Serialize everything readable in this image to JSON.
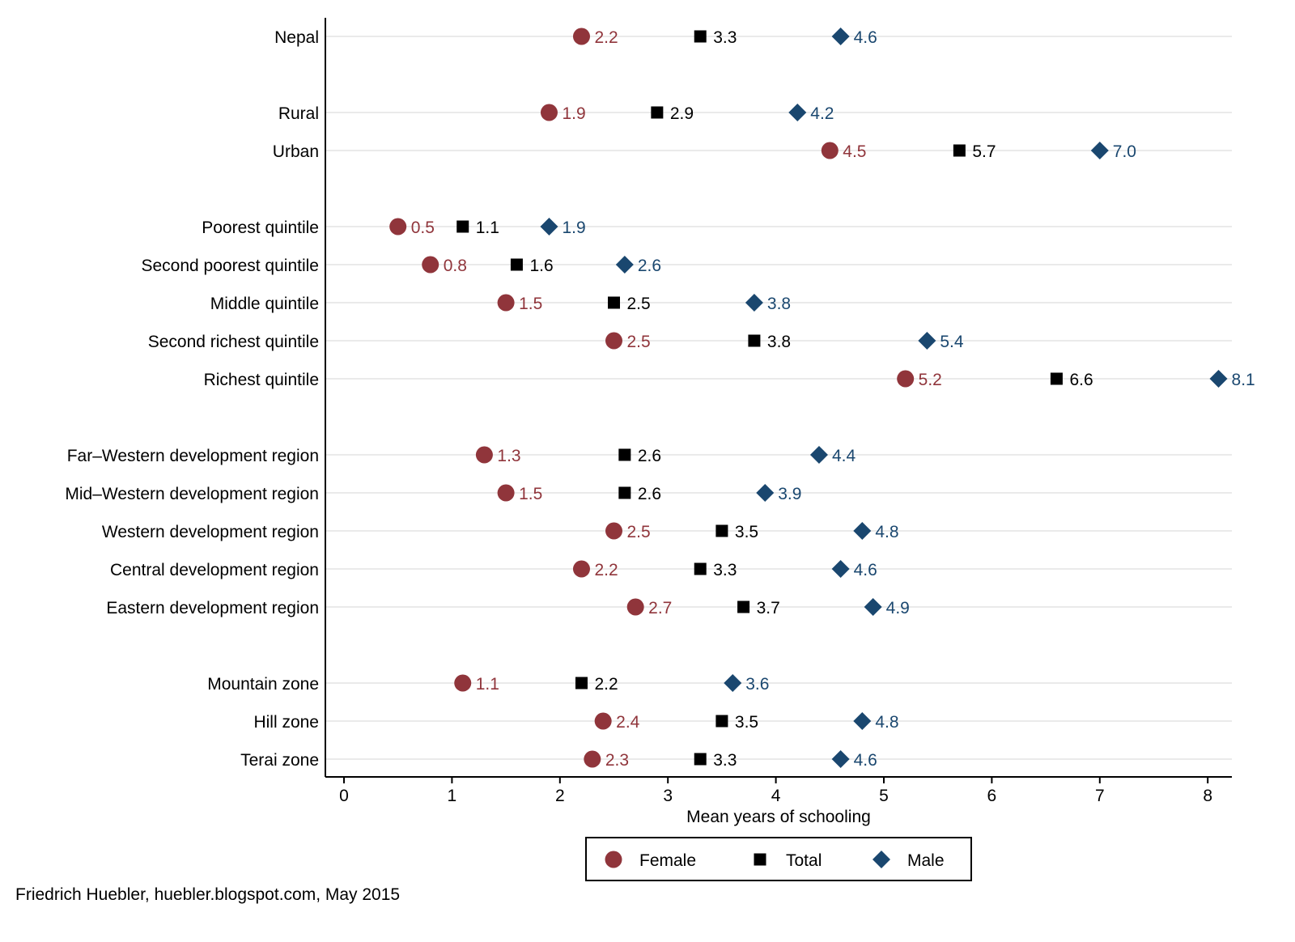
{
  "chart_data": {
    "type": "scatter",
    "orientation": "horizontal dot plot",
    "title": "",
    "xlabel": "Mean years of schooling",
    "ylabel": "",
    "xlim": [
      0,
      8
    ],
    "xticks": [
      0,
      1,
      2,
      3,
      4,
      5,
      6,
      7,
      8
    ],
    "grid": "horizontal lines at each category",
    "legend_position": "bottom",
    "categories": [
      "Nepal",
      "Rural",
      "Urban",
      "Poorest quintile",
      "Second poorest quintile",
      "Middle quintile",
      "Second richest quintile",
      "Richest quintile",
      "Far–Western development region",
      "Mid–Western development region",
      "Western development region",
      "Central development region",
      "Eastern development region",
      "Mountain zone",
      "Hill zone",
      "Terai zone"
    ],
    "group_sizes": [
      1,
      2,
      5,
      5,
      3
    ],
    "series": [
      {
        "name": "Female",
        "marker": "circle",
        "color": "#90353b",
        "values": [
          2.2,
          1.9,
          4.5,
          0.5,
          0.8,
          1.5,
          2.5,
          5.2,
          1.3,
          1.5,
          2.5,
          2.2,
          2.7,
          1.1,
          2.4,
          2.3
        ]
      },
      {
        "name": "Total",
        "marker": "square",
        "color": "#000000",
        "values": [
          3.3,
          2.9,
          5.7,
          1.1,
          1.6,
          2.5,
          3.8,
          6.6,
          2.6,
          2.6,
          3.5,
          3.3,
          3.7,
          2.2,
          3.5,
          3.3
        ]
      },
      {
        "name": "Male",
        "marker": "diamond",
        "color": "#1a476f",
        "values": [
          4.6,
          4.2,
          7.0,
          1.9,
          2.6,
          3.8,
          5.4,
          8.1,
          4.4,
          3.9,
          4.8,
          4.6,
          4.9,
          3.6,
          4.8,
          4.6
        ]
      }
    ]
  },
  "credit": "Friedrich Huebler, huebler.blogspot.com, May 2015"
}
